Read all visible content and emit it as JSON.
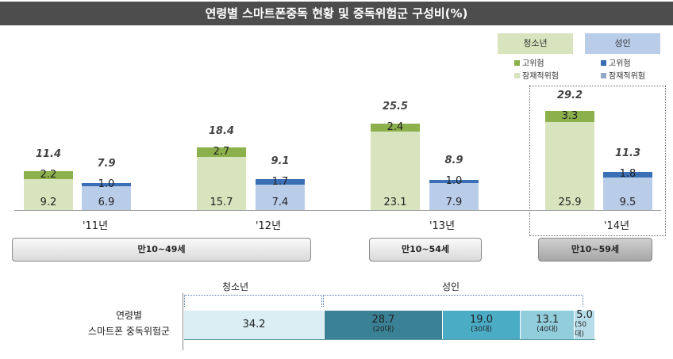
{
  "title": "연령별 스마트폰중독 현황 및 중독위험군 구성비(%)",
  "legend": {
    "youth": {
      "header": "청소년",
      "high": "고위험",
      "latent": "잠재적위험"
    },
    "adult": {
      "header": "성인",
      "high": "고위험",
      "latent": "잠재적위험"
    }
  },
  "colors": {
    "youth_high": "#8cb04c",
    "youth_latent": "#d7e4bd",
    "adult_high": "#3b6fb5",
    "adult_latent": "#b9cde9"
  },
  "age_groups": [
    "만10~49세",
    "만10~54세",
    "만10~59세"
  ],
  "chart_data": [
    {
      "type": "bar",
      "stacked": true,
      "title": "연령별 스마트폰중독 현황",
      "categories": [
        "'11년",
        "'12년",
        "'13년",
        "'14년"
      ],
      "series": [
        {
          "name": "청소년 잠재적위험",
          "values": [
            9.2,
            15.7,
            23.1,
            25.9
          ]
        },
        {
          "name": "청소년 고위험",
          "values": [
            2.2,
            2.7,
            2.4,
            3.3
          ]
        },
        {
          "name": "성인 잠재적위험",
          "values": [
            6.9,
            7.4,
            7.9,
            9.5
          ]
        },
        {
          "name": "성인 고위험",
          "values": [
            1.0,
            1.7,
            1.0,
            1.8
          ]
        }
      ],
      "totals": {
        "youth": [
          11.4,
          18.4,
          25.5,
          29.2
        ],
        "adult": [
          7.9,
          9.1,
          8.9,
          11.3
        ]
      }
    },
    {
      "type": "bar",
      "stacked": true,
      "horizontal": true,
      "title": "연령별 스마트폰중독위험군",
      "row_label": [
        "연령별",
        "스마트폰 중독위험군"
      ],
      "groups": [
        "청소년",
        "성인"
      ],
      "segments": [
        {
          "label": "",
          "value": 34.2,
          "color": "#daeef3"
        },
        {
          "label": "(20대)",
          "value": 28.7,
          "color": "#3a8196"
        },
        {
          "label": "(30대)",
          "value": 19.0,
          "color": "#4bacc6"
        },
        {
          "label": "(40대)",
          "value": 13.1,
          "color": "#92cddc"
        },
        {
          "label": "(50대)",
          "value": 5.0,
          "color": "#b7dee8"
        }
      ]
    }
  ]
}
